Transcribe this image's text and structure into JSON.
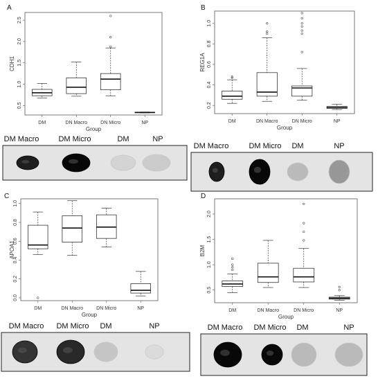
{
  "chart_data": [
    {
      "type": "box",
      "panel": "A",
      "xlabel": "Group",
      "ylabel": "CDH1",
      "yticks": [
        0.5,
        1.0,
        1.5,
        2.0,
        2.5
      ],
      "ylim": [
        0.28,
        2.68
      ],
      "categories": [
        "DM",
        "DN Macro",
        "DN Micro",
        "NP"
      ],
      "boxes": [
        {
          "whisker_low": 0.68,
          "q1": 0.73,
          "median": 0.8,
          "q3": 0.88,
          "whisker_high": 1.02,
          "outliers": []
        },
        {
          "whisker_low": 0.72,
          "q1": 0.78,
          "median": 0.93,
          "q3": 1.15,
          "whisker_high": 1.52,
          "outliers": []
        },
        {
          "whisker_low": 0.73,
          "q1": 0.87,
          "median": 1.12,
          "q3": 1.25,
          "whisker_high": 1.85,
          "outliers": [
            2.1,
            2.6,
            1.88
          ]
        },
        {
          "whisker_low": 0.33,
          "q1": 0.335,
          "median": 0.34,
          "q3": 0.345,
          "whisker_high": 0.35,
          "outliers": []
        }
      ]
    },
    {
      "type": "box",
      "panel": "B",
      "xlabel": "Group",
      "ylabel": "REG1A",
      "yticks": [
        0.2,
        0.4,
        0.6,
        0.8,
        1.0
      ],
      "ylim": [
        0.12,
        1.12
      ],
      "categories": [
        "DM",
        "DN Macro",
        "DN Micro",
        "NP"
      ],
      "boxes": [
        {
          "whisker_low": 0.22,
          "q1": 0.26,
          "median": 0.29,
          "q3": 0.34,
          "whisker_high": 0.45,
          "outliers": [
            0.47,
            0.48
          ]
        },
        {
          "whisker_low": 0.24,
          "q1": 0.29,
          "median": 0.33,
          "q3": 0.52,
          "whisker_high": 0.86,
          "outliers": [
            0.9,
            0.92,
            1.0
          ]
        },
        {
          "whisker_low": 0.25,
          "q1": 0.29,
          "median": 0.37,
          "q3": 0.39,
          "whisker_high": 0.56,
          "outliers": [
            0.72,
            0.9,
            0.93,
            0.97,
            1.0,
            1.05,
            1.1
          ]
        },
        {
          "whisker_low": 0.16,
          "q1": 0.17,
          "median": 0.18,
          "q3": 0.19,
          "whisker_high": 0.21,
          "outliers": []
        }
      ]
    },
    {
      "type": "box",
      "panel": "C",
      "xlabel": "Group",
      "ylabel": "APOA1",
      "yticks": [
        0.0,
        0.2,
        0.4,
        0.6,
        0.8,
        1.0
      ],
      "ylim": [
        -0.03,
        1.05
      ],
      "categories": [
        "DM",
        "DN Macro",
        "DN Micro",
        "NP"
      ],
      "boxes": [
        {
          "whisker_low": 0.46,
          "q1": 0.52,
          "median": 0.56,
          "q3": 0.77,
          "whisker_high": 0.91,
          "outliers": [
            0.0
          ]
        },
        {
          "whisker_low": 0.45,
          "q1": 0.59,
          "median": 0.74,
          "q3": 0.87,
          "whisker_high": 1.03,
          "outliers": []
        },
        {
          "whisker_low": 0.54,
          "q1": 0.63,
          "median": 0.75,
          "q3": 0.88,
          "whisker_high": 0.95,
          "outliers": []
        },
        {
          "whisker_low": 0.02,
          "q1": 0.05,
          "median": 0.08,
          "q3": 0.15,
          "whisker_high": 0.28,
          "outliers": []
        }
      ]
    },
    {
      "type": "box",
      "panel": "D",
      "xlabel": "Group",
      "ylabel": "B2M",
      "yticks": [
        0.5,
        1.0,
        1.5,
        2.0
      ],
      "ylim": [
        0.25,
        2.3
      ],
      "categories": [
        "DM",
        "DN Macro",
        "DN Micro",
        "NP"
      ],
      "boxes": [
        {
          "whisker_low": 0.45,
          "q1": 0.57,
          "median": 0.62,
          "q3": 0.68,
          "whisker_high": 0.82,
          "outliers": [
            0.9,
            0.95,
            1.0,
            1.12
          ]
        },
        {
          "whisker_low": 0.55,
          "q1": 0.65,
          "median": 0.76,
          "q3": 1.03,
          "whisker_high": 1.48,
          "outliers": []
        },
        {
          "whisker_low": 0.55,
          "q1": 0.66,
          "median": 0.76,
          "q3": 0.93,
          "whisker_high": 1.32,
          "outliers": [
            1.48,
            1.65,
            1.82,
            2.2
          ]
        },
        {
          "whisker_low": 0.3,
          "q1": 0.32,
          "median": 0.34,
          "q3": 0.36,
          "whisker_high": 0.39,
          "outliers": [
            0.5,
            0.56
          ]
        }
      ]
    }
  ],
  "blots": [
    {
      "labels": [
        "DM Macro",
        "DM Micro",
        "DM",
        "NP"
      ],
      "spots": [
        {
          "intensity": 0.9
        },
        {
          "intensity": 1.0
        },
        {
          "intensity": 0.08
        },
        {
          "intensity": 0.12
        }
      ]
    },
    {
      "labels": [
        "DM Macro",
        "DM Micro",
        "DM",
        "NP"
      ],
      "spots": [
        {
          "intensity": 0.9
        },
        {
          "intensity": 1.0
        },
        {
          "intensity": 0.2
        },
        {
          "intensity": 0.35
        }
      ]
    },
    {
      "labels": [
        "DM Macro",
        "DM Micro",
        "DM",
        "NP"
      ],
      "spots": [
        {
          "intensity": 0.8
        },
        {
          "intensity": 0.85
        },
        {
          "intensity": 0.15
        },
        {
          "intensity": 0.05
        }
      ]
    },
    {
      "labels": [
        "DM Macro",
        "DM Micro",
        "DM",
        "NP"
      ],
      "spots": [
        {
          "intensity": 1.0
        },
        {
          "intensity": 1.0
        },
        {
          "intensity": 0.2
        },
        {
          "intensity": 0.2
        }
      ]
    }
  ],
  "colors": {
    "box_stroke": "#333333",
    "blot_bg": "#e4e4e4",
    "spot": "#0a0a0a"
  }
}
